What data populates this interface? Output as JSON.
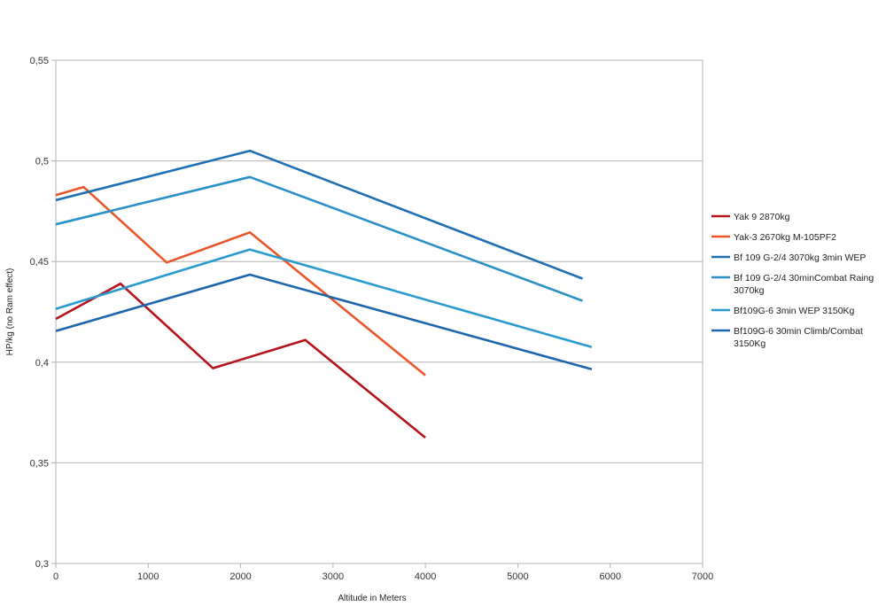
{
  "chart_data": {
    "type": "line",
    "title": "",
    "xlabel": "Altitude in Meters",
    "ylabel": "HP/kg (no Ram effect)",
    "xlim": [
      0,
      7000
    ],
    "ylim": [
      0.3,
      0.55
    ],
    "x_ticks": [
      0,
      1000,
      2000,
      3000,
      4000,
      5000,
      6000,
      7000
    ],
    "x_tick_labels": [
      "0",
      "1000",
      "2000",
      "3000",
      "4000",
      "5000",
      "6000",
      "7000"
    ],
    "y_ticks": [
      0.3,
      0.35,
      0.4,
      0.45,
      0.5,
      0.55
    ],
    "y_tick_labels": [
      "0,3",
      "0,35",
      "0,4",
      "0,45",
      "0,5",
      "0,55"
    ],
    "grid": "horizontal",
    "legend_position": "right",
    "series": [
      {
        "name": "Yak 9 2870kg",
        "label_lines": [
          "Yak 9 2870kg"
        ],
        "color": "#b5121b",
        "points": [
          [
            0,
            0.4215
          ],
          [
            700,
            0.439
          ],
          [
            1700,
            0.397
          ],
          [
            2700,
            0.411
          ],
          [
            4000,
            0.3625
          ]
        ]
      },
      {
        "name": "Yak-3 2670kg M-105PF2",
        "label_lines": [
          "Yak-3 2670kg M-105PF2"
        ],
        "color": "#e8562a",
        "points": [
          [
            0,
            0.483
          ],
          [
            300,
            0.487
          ],
          [
            1200,
            0.4495
          ],
          [
            2100,
            0.4645
          ],
          [
            4000,
            0.3935
          ]
        ]
      },
      {
        "name": "Bf 109 G-2/4 3070kg 3min WEP",
        "label_lines": [
          "Bf 109 G-2/4 3070kg 3min WEP"
        ],
        "color": "#1f6fb5",
        "points": [
          [
            0,
            0.4805
          ],
          [
            2100,
            0.505
          ],
          [
            5700,
            0.4415
          ]
        ]
      },
      {
        "name": "Bf 109 G-2/4 30minCombat Raing 3070kg",
        "label_lines": [
          "Bf 109 G-2/4 30minCombat Raing",
          "3070kg"
        ],
        "color": "#2990c8",
        "points": [
          [
            0,
            0.4685
          ],
          [
            2100,
            0.492
          ],
          [
            5700,
            0.4305
          ]
        ]
      },
      {
        "name": "Bf109G-6 3min WEP 3150Kg",
        "label_lines": [
          "Bf109G-6 3min WEP 3150Kg"
        ],
        "color": "#2a9bcf",
        "points": [
          [
            0,
            0.4265
          ],
          [
            2100,
            0.456
          ],
          [
            5800,
            0.4075
          ]
        ]
      },
      {
        "name": "Bf109G-6 30min Climb/Combat 3150Kg",
        "label_lines": [
          "Bf109G-6 30min Climb/Combat",
          "3150Kg"
        ],
        "color": "#1d66ad",
        "points": [
          [
            0,
            0.4155
          ],
          [
            2100,
            0.4435
          ],
          [
            5800,
            0.3965
          ]
        ]
      }
    ]
  }
}
